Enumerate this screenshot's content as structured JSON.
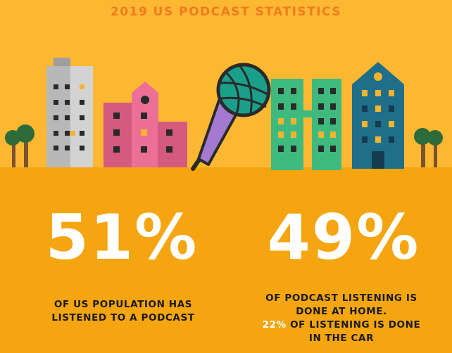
{
  "title": "2019 US PODCAST STATISTICS",
  "stats": [
    {
      "value": "51%",
      "caption_line1": "OF US POPULATION HAS",
      "caption_line2": "LISTENED TO A PODCAST"
    },
    {
      "value": "49%",
      "caption_line1": "OF PODCAST LISTENING IS",
      "caption_line2": "DONE AT HOME.",
      "highlight": "22%",
      "caption_line3_rest": " OF LISTENING IS DONE",
      "caption_line4": "IN THE CAR"
    }
  ],
  "colors": {
    "sky": "#fcb833",
    "ground": "#f4a50f",
    "title": "#f07a1e",
    "microphone_head": "#1aa08a",
    "microphone_handle": "#a47ad0"
  },
  "icons": [
    "grey-building-icon",
    "pink-building-icon",
    "microphone-icon",
    "green-building-icon",
    "teal-building-icon",
    "tree-icon"
  ]
}
